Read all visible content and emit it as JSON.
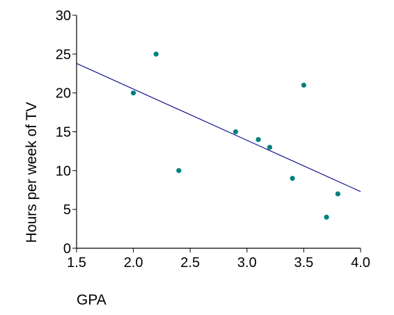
{
  "chart_data": {
    "type": "scatter",
    "title": "",
    "xlabel": "GPA",
    "ylabel": "Hours per week of TV",
    "xlim": [
      1.5,
      4.0
    ],
    "ylim": [
      0,
      30
    ],
    "x_ticks": [
      "1.5",
      "2.0",
      "2.5",
      "3.0",
      "3.5",
      "4.0"
    ],
    "y_ticks": [
      "0",
      "5",
      "10",
      "15",
      "20",
      "25",
      "30"
    ],
    "grid": false,
    "legend": "none",
    "point_color": "#008080",
    "line_color": "#000080",
    "points": [
      {
        "x": 2.0,
        "y": 20
      },
      {
        "x": 2.2,
        "y": 25
      },
      {
        "x": 2.4,
        "y": 10
      },
      {
        "x": 2.9,
        "y": 15
      },
      {
        "x": 3.1,
        "y": 14
      },
      {
        "x": 3.2,
        "y": 13
      },
      {
        "x": 3.4,
        "y": 9
      },
      {
        "x": 3.5,
        "y": 21
      },
      {
        "x": 3.7,
        "y": 4
      },
      {
        "x": 3.8,
        "y": 7
      }
    ],
    "trend_line": {
      "x": [
        1.5,
        4.0
      ],
      "y": [
        23.8,
        7.3
      ]
    }
  }
}
